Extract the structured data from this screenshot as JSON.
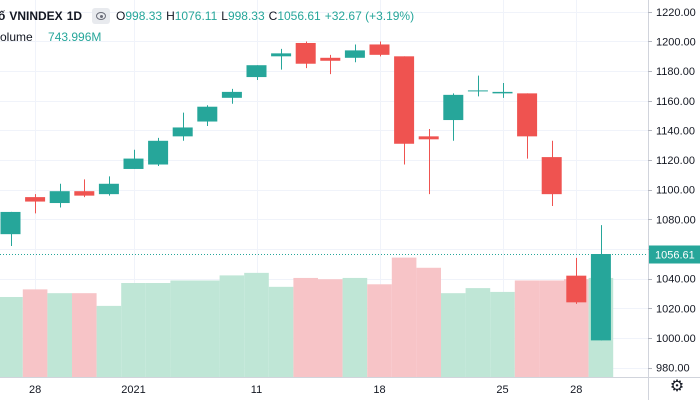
{
  "legend": {
    "symbol_prefix": "ố",
    "symbol": "VNINDEX",
    "interval": "1D",
    "open_label": "O",
    "open": "998.33",
    "high_label": "H",
    "high": "1076.11",
    "low_label": "L",
    "low": "998.33",
    "close_label": "C",
    "close": "1056.61",
    "change": "+32.67 (+3.19%)"
  },
  "volume": {
    "label": "olume",
    "value": "743.996M"
  },
  "last_price_label": "1056.61",
  "colors": {
    "up": "#26a69a",
    "down": "#ef5350",
    "vol_up": "#bfe6d6",
    "vol_down": "#f7c4c7",
    "grid": "#f0f3fa",
    "axis_text": "#131722",
    "price_line": "#26a69a"
  },
  "chart_data": {
    "type": "candlestick",
    "title": "VNINDEX 1D",
    "x_tick_labels": [
      {
        "label": "28",
        "index": 1
      },
      {
        "label": "2021",
        "index": 5
      },
      {
        "label": "11",
        "index": 10
      },
      {
        "label": "18",
        "index": 15
      },
      {
        "label": "25",
        "index": 20
      },
      {
        "label": "28",
        "index": 23
      }
    ],
    "y_ticks": [
      980,
      1000,
      1020,
      1040,
      1060,
      1080,
      1100,
      1120,
      1140,
      1160,
      1180,
      1200,
      1220
    ],
    "y_tick_labels": [
      "980.00",
      "1000.00",
      "1020.00",
      "1040.00",
      "1060.00",
      "1080.00",
      "1100.00",
      "1120.00",
      "1140.00",
      "1160.00",
      "1180.00",
      "1200.00",
      "1220.00"
    ],
    "ylim": [
      977,
      1228
    ],
    "volume_max": 100,
    "candles": [
      {
        "o": 1070,
        "h": 1085,
        "l": 1062,
        "c": 1085,
        "vol": 63
      },
      {
        "o": 1095,
        "h": 1097,
        "l": 1084,
        "c": 1092,
        "vol": 69
      },
      {
        "o": 1091,
        "h": 1104,
        "l": 1088,
        "c": 1099,
        "vol": 66
      },
      {
        "o": 1099,
        "h": 1107,
        "l": 1095,
        "c": 1096,
        "vol": 66
      },
      {
        "o": 1097,
        "h": 1109,
        "l": 1096,
        "c": 1104,
        "vol": 56
      },
      {
        "o": 1114,
        "h": 1127,
        "l": 1114,
        "c": 1121,
        "vol": 74
      },
      {
        "o": 1117,
        "h": 1135,
        "l": 1116,
        "c": 1133,
        "vol": 74
      },
      {
        "o": 1136,
        "h": 1152,
        "l": 1133,
        "c": 1142,
        "vol": 76
      },
      {
        "o": 1146,
        "h": 1157,
        "l": 1143,
        "c": 1156,
        "vol": 76
      },
      {
        "o": 1162,
        "h": 1168,
        "l": 1158,
        "c": 1166,
        "vol": 80
      },
      {
        "o": 1176,
        "h": 1184,
        "l": 1174,
        "c": 1184,
        "vol": 82
      },
      {
        "o": 1190,
        "h": 1195,
        "l": 1181,
        "c": 1192,
        "vol": 71
      },
      {
        "o": 1199,
        "h": 1200,
        "l": 1182,
        "c": 1185,
        "vol": 78
      },
      {
        "o": 1189,
        "h": 1191,
        "l": 1178,
        "c": 1187,
        "vol": 77
      },
      {
        "o": 1189,
        "h": 1198,
        "l": 1186,
        "c": 1194,
        "vol": 78
      },
      {
        "o": 1198,
        "h": 1200,
        "l": 1190,
        "c": 1191,
        "vol": 73
      },
      {
        "o": 1190,
        "h": 1190,
        "l": 1117,
        "c": 1131,
        "vol": 94
      },
      {
        "o": 1136,
        "h": 1141,
        "l": 1097,
        "c": 1134,
        "vol": 86
      },
      {
        "o": 1147,
        "h": 1165,
        "l": 1133,
        "c": 1164,
        "vol": 66
      },
      {
        "o": 1167,
        "h": 1177,
        "l": 1163,
        "c": 1167,
        "vol": 70
      },
      {
        "o": 1165,
        "h": 1172,
        "l": 1162,
        "c": 1166,
        "vol": 67
      },
      {
        "o": 1165,
        "h": 1165,
        "l": 1121,
        "c": 1136,
        "vol": 76
      },
      {
        "o": 1122,
        "h": 1133,
        "l": 1089,
        "c": 1097,
        "vol": 76
      },
      {
        "o": 1042,
        "h": 1054,
        "l": 1023,
        "c": 1024,
        "vol": 77
      },
      {
        "o": 998.33,
        "h": 1076.11,
        "l": 998.33,
        "c": 1056.61,
        "vol": 78
      }
    ],
    "last_price": 1056.61
  }
}
